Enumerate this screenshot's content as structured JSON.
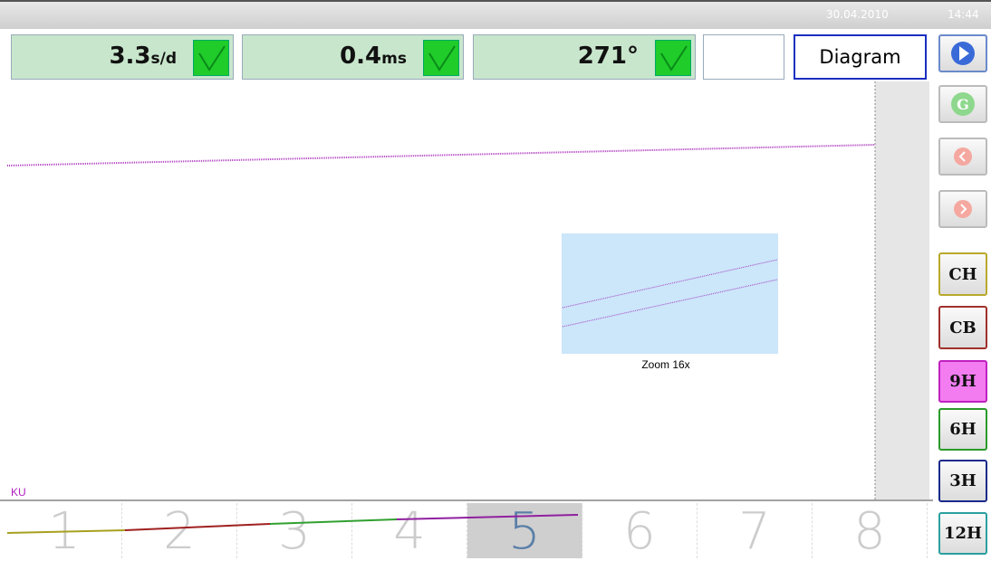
{
  "status_bar": {
    "date": "30.04.2010",
    "time": "14:44"
  },
  "readouts": [
    {
      "value": "3.3",
      "unit": "s/d"
    },
    {
      "value": "0.4",
      "unit": "ms"
    },
    {
      "value": "271°"
    }
  ],
  "view_button": "Diagram",
  "channel_buttons": [
    "CH",
    "CB",
    "9H",
    "6H",
    "3H",
    "12H"
  ],
  "plot": {
    "axis_label": "KU",
    "zoom_label": "Zoom 16x"
  },
  "pages": [
    "1",
    "2",
    "3",
    "4",
    "5",
    "6",
    "7",
    "8"
  ]
}
